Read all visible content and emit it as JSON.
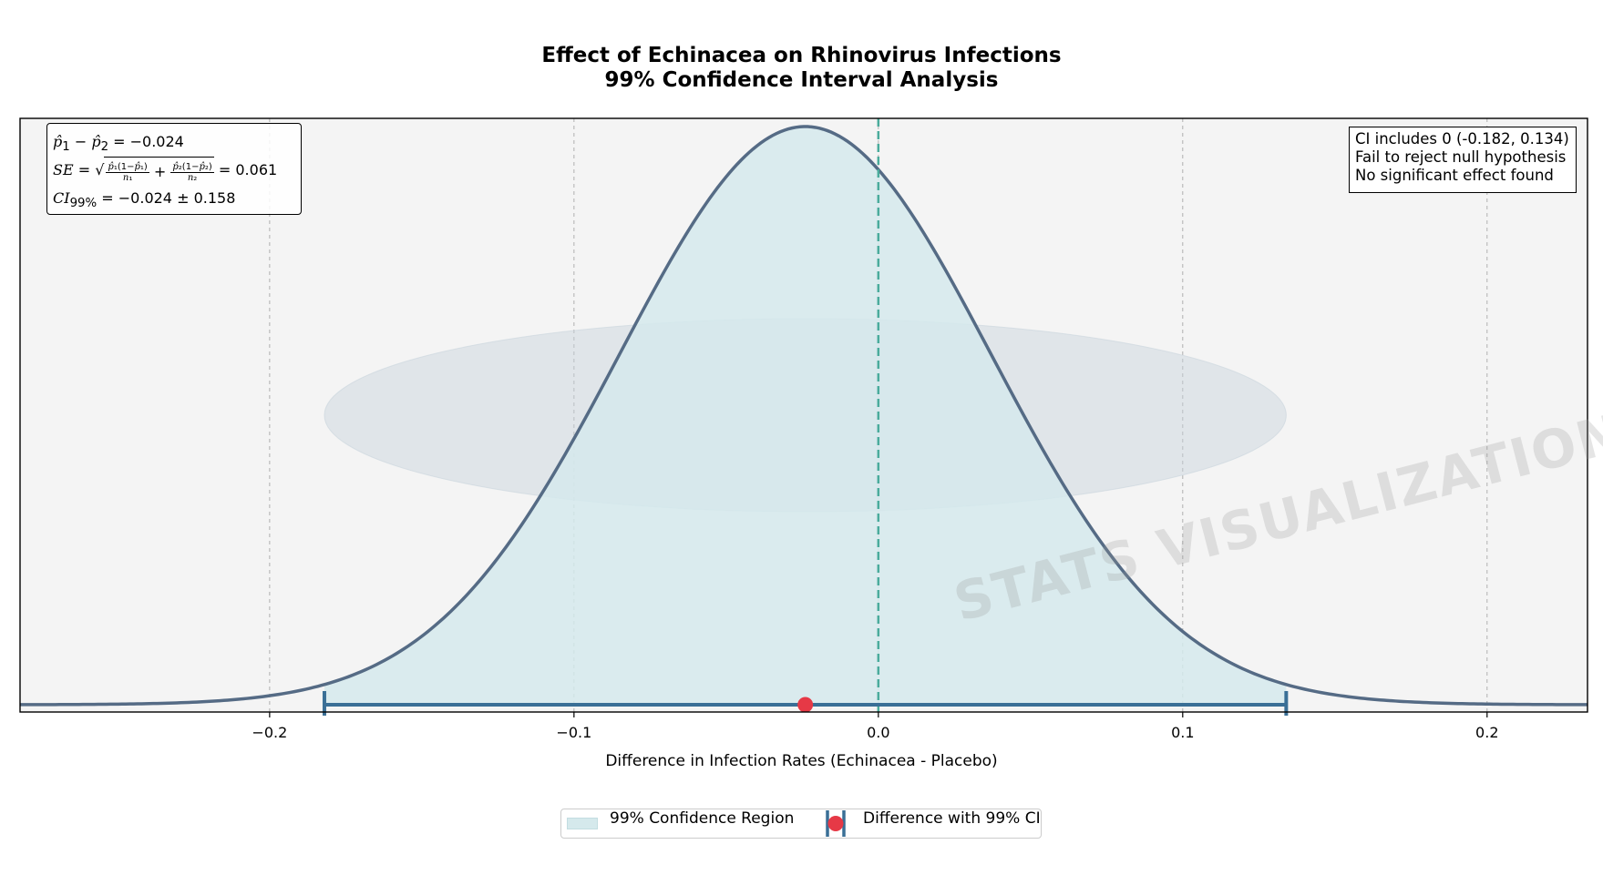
{
  "chart_data": {
    "type": "line",
    "title": "Effect of Echinacea on Rhinovirus Infections",
    "subtitle": "99% Confidence Interval Analysis",
    "xlabel": "Difference in Infection Rates (Echinacea - Placebo)",
    "ylabel": "",
    "xlim": [
      -0.282,
      0.233
    ],
    "x_ticks": [
      -0.2,
      -0.1,
      0.0,
      0.1,
      0.2
    ],
    "x_tick_labels": [
      "−0.2",
      "−0.1",
      "0.0",
      "0.1",
      "0.2"
    ],
    "grid": "vertical dashed",
    "distribution": {
      "mean": -0.024,
      "se": 0.061,
      "shape": "normal density"
    },
    "confidence_interval": {
      "level": "99%",
      "lower": -0.182,
      "upper": 0.134,
      "point_estimate": -0.024
    },
    "reference_line_x": 0.0,
    "series": [
      {
        "name": "99% Confidence Region",
        "kind": "shaded area"
      },
      {
        "name": "Difference with 99% CI",
        "kind": "point with error bar"
      }
    ],
    "legend_placement": "bottom-center",
    "colors": {
      "curve": "#556b85",
      "fill": "#d5e9ec",
      "ci_bar": "#3a6f96",
      "point": "#e63946",
      "zero_line": "#4aab9c",
      "plot_bg": "#f4f4f4",
      "ellipse": "#c8d3dc"
    }
  },
  "annotations": {
    "formula_diff": "= −0.024",
    "formula_se_value": "= 0.061",
    "formula_ci": "= −0.024 ± 0.158",
    "info_lines": [
      "CI includes 0 (-0.182, 0.134)",
      "Fail to reject null hypothesis",
      "No significant effect found"
    ]
  },
  "watermark": "STATS VISUALIZATION"
}
